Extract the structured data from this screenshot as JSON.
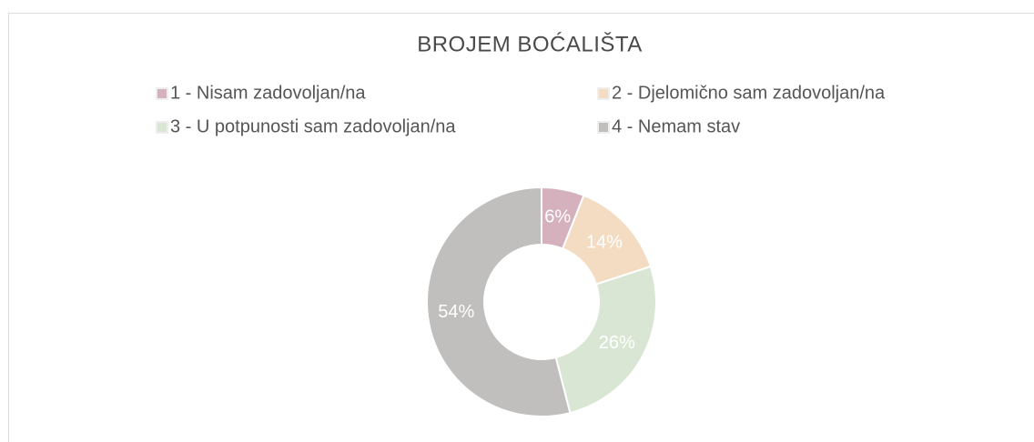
{
  "chart_data": {
    "type": "donut",
    "title": "BROJEM BOĆALIŠTA",
    "categories": [
      "1 - Nisam zadovoljan/na",
      "2 - Djelomično sam zadovoljan/na",
      "3 - U potpunosti sam zadovoljan/na",
      "4 - Nemam stav"
    ],
    "values": [
      6,
      14,
      26,
      54
    ],
    "value_labels": [
      "6%",
      "14%",
      "26%",
      "54%"
    ],
    "colors": [
      "#d4b1bc",
      "#f3dcc1",
      "#d9e6d3",
      "#c0bfbe"
    ],
    "legend": "top"
  }
}
